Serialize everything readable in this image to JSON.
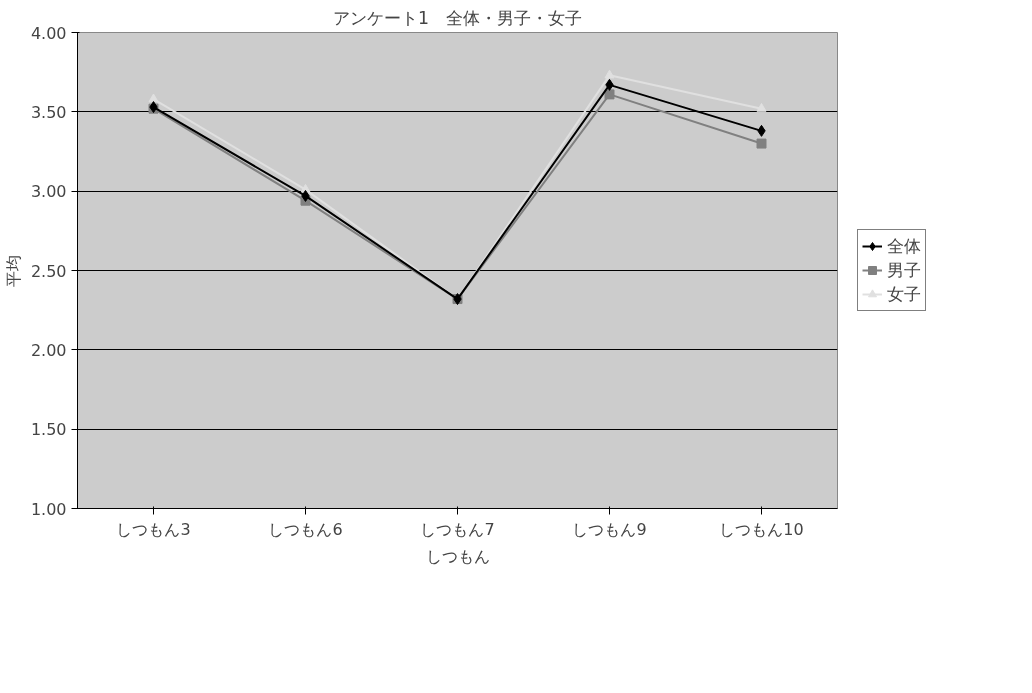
{
  "chart_data": {
    "type": "line",
    "title": "アンケート1　全体・男子・女子",
    "xlabel": "しつもん",
    "ylabel": "平均",
    "categories": [
      "しつもん3",
      "しつもん6",
      "しつもん7",
      "しつもん9",
      "しつもん10"
    ],
    "series": [
      {
        "name": "全体",
        "color": "#000000",
        "marker": "diamond",
        "values": [
          3.53,
          2.97,
          2.32,
          3.67,
          3.38
        ]
      },
      {
        "name": "男子",
        "color": "#808080",
        "marker": "square",
        "values": [
          3.52,
          2.94,
          2.32,
          3.61,
          3.3
        ]
      },
      {
        "name": "女子",
        "color": "#e0e0e0",
        "marker": "triangle",
        "values": [
          3.58,
          3.01,
          2.32,
          3.73,
          3.52
        ]
      }
    ],
    "ylim": [
      1.0,
      4.0
    ],
    "yticks": [
      {
        "value": 1.0,
        "label": "1.00"
      },
      {
        "value": 1.5,
        "label": "1.50"
      },
      {
        "value": 2.0,
        "label": "2.00"
      },
      {
        "value": 2.5,
        "label": "2.50"
      },
      {
        "value": 3.0,
        "label": "3.00"
      },
      {
        "value": 3.5,
        "label": "3.50"
      },
      {
        "value": 4.0,
        "label": "4.00"
      }
    ],
    "grid": "y",
    "legend": "right"
  }
}
